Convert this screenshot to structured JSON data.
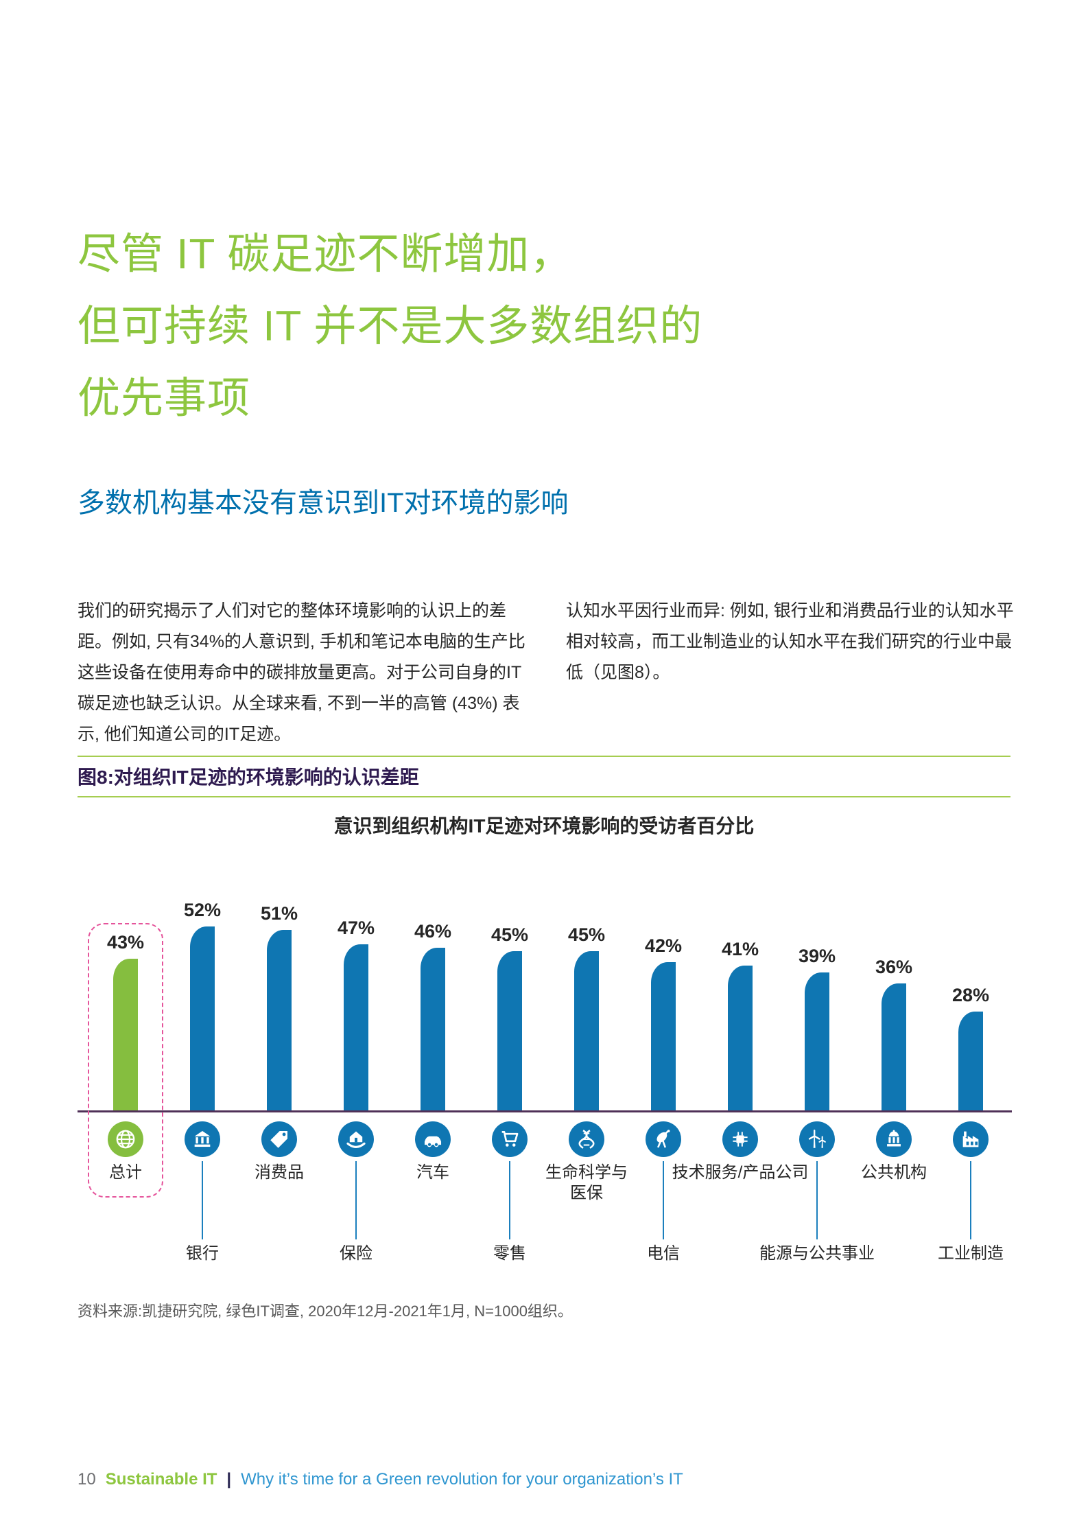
{
  "heading": {
    "lines": [
      "尽管 IT 碳足迹不断增加，",
      "但可持续 IT 并不是大多数组织的",
      "优先事项"
    ],
    "color": "#8DC63F"
  },
  "subheading": {
    "text": "多数机构基本没有意识到IT对环境的影响",
    "color": "#0070AD"
  },
  "paragraphs": {
    "left": "我们的研究揭示了人们对它的整体环境影响的认识上的差距。例如, 只有34%的人意识到, 手机和笔记本电脑的生产比这些设备在使用寿命中的碳排放量更高。对于公司自身的IT碳足迹也缺乏认识。从全球来看, 不到一半的高管 (43%) 表示, 他们知道公司的IT足迹。",
    "right": "认知水平因行业而异: 例如, 银行业和消费品行业的认知水平相对较高，而工业制造业的认知水平在我们研究的行业中最低（见图8）。"
  },
  "figure": {
    "caption": "图8:对组织IT足迹的环境影响的认识差距",
    "chart_title": "意识到组织机构IT足迹对环境影响的受访者百分比",
    "source": "资料来源:凯捷研究院, 绿色IT调查, 2020年12月-2021年1月, N=1000组织。"
  },
  "chart_data": {
    "type": "bar",
    "title": "意识到组织机构IT足迹对环境影响的受访者百分比",
    "unit": "%",
    "ylim": [
      0,
      60
    ],
    "categories": [
      "总计",
      "银行",
      "消费品",
      "保险",
      "汽车",
      "零售",
      "生命科学与\n医保",
      "电信",
      "技术服务/产品公司",
      "能源与公共事业",
      "公共机构",
      "工业制造"
    ],
    "values": [
      43,
      52,
      51,
      47,
      46,
      45,
      45,
      42,
      41,
      39,
      36,
      28
    ],
    "bar_color": "#0F76B2",
    "highlight": {
      "index": 0,
      "bar_color": "#85BE3F",
      "outline_color": "#E5549B",
      "note": "total highlighted with dashed outline"
    },
    "axis_color": "#503158",
    "legend": "none",
    "grid": false,
    "icons": [
      "globe-icon",
      "bank-icon",
      "price-tag-icon",
      "insurance-hands-house-icon",
      "car-icon",
      "shopping-cart-icon",
      "dna-icon",
      "satellite-dish-icon",
      "chip-icon",
      "wind-turbine-icon",
      "government-building-icon",
      "factory-icon"
    ],
    "label_rows": [
      "upper",
      "lower",
      "upper",
      "lower",
      "upper",
      "lower",
      "upper",
      "lower",
      "upper",
      "lower",
      "upper",
      "lower"
    ]
  },
  "footer": {
    "page_number": "10",
    "brand": "Sustainable IT",
    "divider": "|",
    "tagline": "Why it’s time for a Green revolution for your organization’s IT"
  }
}
